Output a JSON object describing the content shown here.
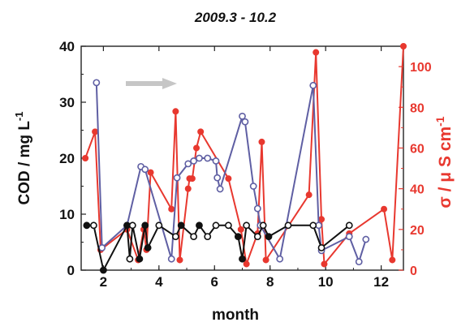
{
  "chart_data": {
    "type": "line",
    "title": "2009.3 - 10.2",
    "xlabel": "month",
    "ylabel_left": "COD / mg L",
    "ylabel_left_sup": "-1",
    "ylabel_right_prefix": "σ / μ S cm",
    "ylabel_right_sup": "-1",
    "xlim": [
      1.2,
      12.8
    ],
    "ylim_left": [
      0,
      40
    ],
    "ylim_right": [
      0,
      110
    ],
    "x_ticks": [
      "2",
      "4",
      "6",
      "8",
      "10",
      "12"
    ],
    "y_left_ticks": [
      "0",
      "10",
      "20",
      "30",
      "40"
    ],
    "y_right_ticks": [
      "0",
      "20",
      "40",
      "60",
      "80",
      "100"
    ],
    "colors": {
      "blue_series": "#5f5fa3",
      "black_series": "#111111",
      "red_series": "#e8382f",
      "annotation_arrow": "#b8b8b8"
    },
    "series": [
      {
        "axis": "left",
        "color": "blue",
        "marker": "open-circle",
        "points": [
          [
            1.75,
            33.5
          ],
          [
            1.95,
            4
          ],
          [
            2.85,
            8
          ],
          [
            3.35,
            18.5
          ],
          [
            3.5,
            18
          ],
          [
            4.45,
            2
          ],
          [
            4.65,
            16.5
          ],
          [
            5.05,
            19
          ],
          [
            5.25,
            19.5
          ],
          [
            5.45,
            20
          ],
          [
            5.75,
            20
          ],
          [
            6.05,
            19.5
          ],
          [
            6.1,
            16.5
          ],
          [
            6.2,
            14.5
          ],
          [
            7.0,
            27.5
          ],
          [
            7.1,
            26.5
          ],
          [
            7.4,
            15
          ],
          [
            7.55,
            11
          ],
          [
            7.65,
            8
          ],
          [
            8.35,
            2
          ],
          [
            9.55,
            33
          ],
          [
            9.75,
            8
          ],
          [
            9.85,
            3.5
          ],
          [
            10.85,
            6
          ],
          [
            11.2,
            1.5
          ],
          [
            11.45,
            5.5
          ]
        ]
      },
      {
        "axis": "left",
        "color": "black",
        "marker": "mixed",
        "points": [
          [
            1.4,
            8,
            "filled"
          ],
          [
            1.65,
            8,
            "open"
          ],
          [
            2.0,
            0,
            "filled"
          ],
          [
            2.85,
            8,
            "filled"
          ],
          [
            2.95,
            2,
            "open"
          ],
          [
            3.05,
            8,
            "open"
          ],
          [
            3.3,
            2,
            "filled"
          ],
          [
            3.5,
            8,
            "filled"
          ],
          [
            3.6,
            4,
            "filled"
          ],
          [
            4.0,
            8,
            "open"
          ],
          [
            4.6,
            6,
            "open"
          ],
          [
            4.8,
            8,
            "filled"
          ],
          [
            5.25,
            6,
            "open"
          ],
          [
            5.45,
            8,
            "filled"
          ],
          [
            5.75,
            6,
            "open"
          ],
          [
            6.05,
            8,
            "open"
          ],
          [
            6.5,
            8,
            "open"
          ],
          [
            6.85,
            6,
            "filled"
          ],
          [
            7.0,
            2,
            "filled"
          ],
          [
            7.15,
            8,
            "open"
          ],
          [
            7.55,
            6,
            "open"
          ],
          [
            7.75,
            8,
            "open"
          ],
          [
            7.95,
            6,
            "filled"
          ],
          [
            8.65,
            8,
            "open"
          ],
          [
            9.55,
            8,
            "open"
          ],
          [
            9.85,
            4,
            "open"
          ],
          [
            10.85,
            8,
            "open"
          ]
        ]
      },
      {
        "axis": "right",
        "color": "red",
        "marker": "filled-circle",
        "points": [
          [
            1.35,
            55
          ],
          [
            1.7,
            68
          ],
          [
            1.9,
            10
          ],
          [
            2.85,
            20
          ],
          [
            3.25,
            5
          ],
          [
            3.45,
            20
          ],
          [
            3.55,
            10
          ],
          [
            3.7,
            48
          ],
          [
            4.45,
            30
          ],
          [
            4.6,
            78
          ],
          [
            4.75,
            5
          ],
          [
            5.05,
            40
          ],
          [
            5.1,
            45
          ],
          [
            5.2,
            45
          ],
          [
            5.35,
            60
          ],
          [
            5.5,
            68
          ],
          [
            6.5,
            45
          ],
          [
            6.95,
            20
          ],
          [
            7.15,
            3
          ],
          [
            7.55,
            18
          ],
          [
            7.7,
            63
          ],
          [
            7.85,
            5
          ],
          [
            9.4,
            37
          ],
          [
            9.65,
            107
          ],
          [
            9.85,
            25
          ],
          [
            9.95,
            3
          ],
          [
            10.85,
            18
          ],
          [
            12.1,
            30
          ],
          [
            12.4,
            5
          ],
          [
            12.8,
            110
          ]
        ]
      }
    ],
    "annotation": "right-pointing gray arrow near top left"
  }
}
